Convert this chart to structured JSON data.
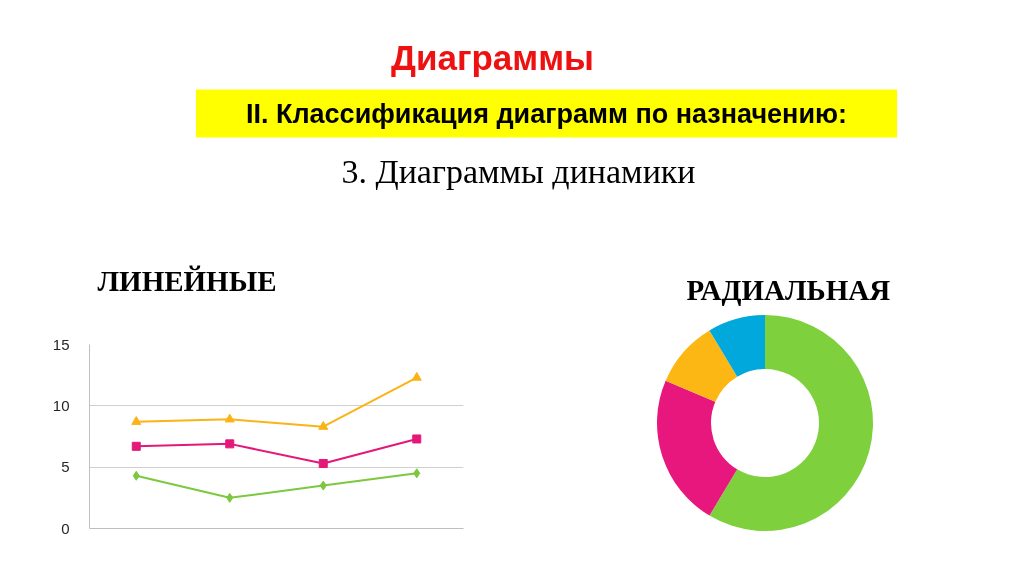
{
  "chart_data": [
    {
      "type": "other",
      "title": "Диаграммы",
      "subtitle": "II. Классификация диаграмм по назначению:",
      "annotations": [
        "3. Диаграммы динамики"
      ]
    },
    {
      "type": "line",
      "title": "ЛИНЕЙНЫЕ",
      "categories": [
        null,
        null,
        null,
        null
      ],
      "series": [
        {
          "color": "#7cc83e",
          "marker": "diamond",
          "values": [
            4.3,
            2.5,
            3.5,
            4.5
          ]
        },
        {
          "color": "#e3187a",
          "marker": "square",
          "values": [
            6.7,
            6.9,
            5.3,
            7.3
          ]
        },
        {
          "color": "#fbb316",
          "marker": "triangle",
          "values": [
            8.7,
            8.9,
            8.3,
            12.3
          ]
        }
      ],
      "ylim": [
        0,
        15
      ],
      "yticks": [
        0,
        5,
        10,
        15
      ],
      "grid": "y",
      "tick_labels": "y"
    },
    {
      "type": "donut",
      "title": "РАДИАЛЬНАЯ",
      "categories": [
        null,
        null,
        null,
        null
      ],
      "values": [
        58.6,
        22.8,
        10.0,
        8.6
      ],
      "colors": [
        "#7ed13c",
        "#e8177e",
        "#fdb714",
        "#00a8dc"
      ]
    }
  ]
}
